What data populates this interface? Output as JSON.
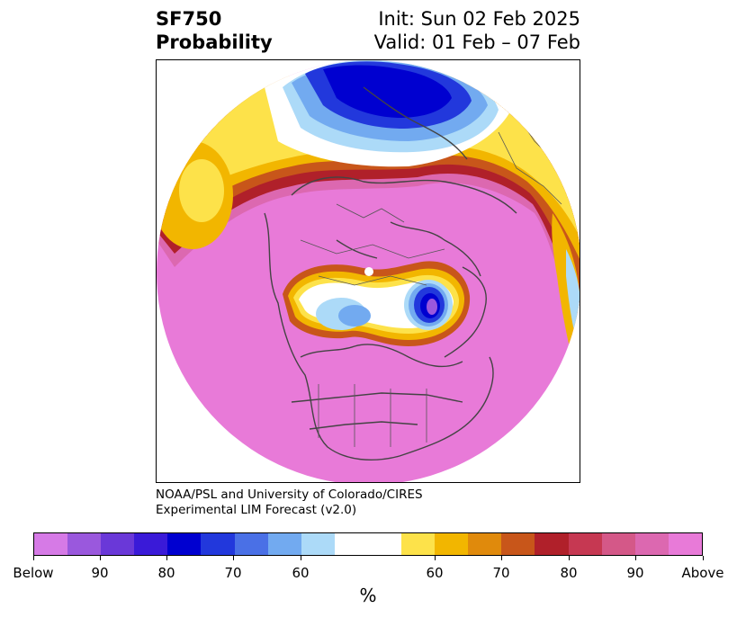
{
  "header": {
    "title_line1": "SF750",
    "title_line2": "Probability",
    "init_line": "Init: Sun 02 Feb 2025",
    "valid_line": "Valid: 01 Feb – 07 Feb"
  },
  "credits": {
    "line1": "NOAA/PSL and University of Colorado/CIRES",
    "line2": "Experimental LIM Forecast (v2.0)"
  },
  "colorbar": {
    "unit_label": "%",
    "colors": [
      "#d67ae6",
      "#9a58dd",
      "#6a38d8",
      "#3a1ad8",
      "#0000d0",
      "#2238dc",
      "#4a70e6",
      "#72aaf0",
      "#acdaf8",
      "#ffffff",
      "#ffffff",
      "#fde24a",
      "#f2b600",
      "#e08a0c",
      "#c8561a",
      "#b0202a",
      "#c63852",
      "#d45888",
      "#dc68b0",
      "#e87ad8"
    ],
    "tick_labels": [
      "Below",
      "90",
      "80",
      "70",
      "60",
      "60",
      "70",
      "80",
      "90",
      "Above"
    ]
  },
  "map": {
    "projection": "north-polar-stereographic",
    "field_colors": {
      "above_strong": "#e87ad8",
      "above_90": "#dc68b0",
      "above_80": "#b0202a",
      "above_70": "#c8561a",
      "above_60": "#f2b600",
      "neutral": "#ffffff",
      "below_60": "#acdaf8",
      "below_70": "#72aaf0",
      "below_80": "#2238dc",
      "below_90": "#0000d0",
      "below_strong": "#9a58dd"
    }
  }
}
